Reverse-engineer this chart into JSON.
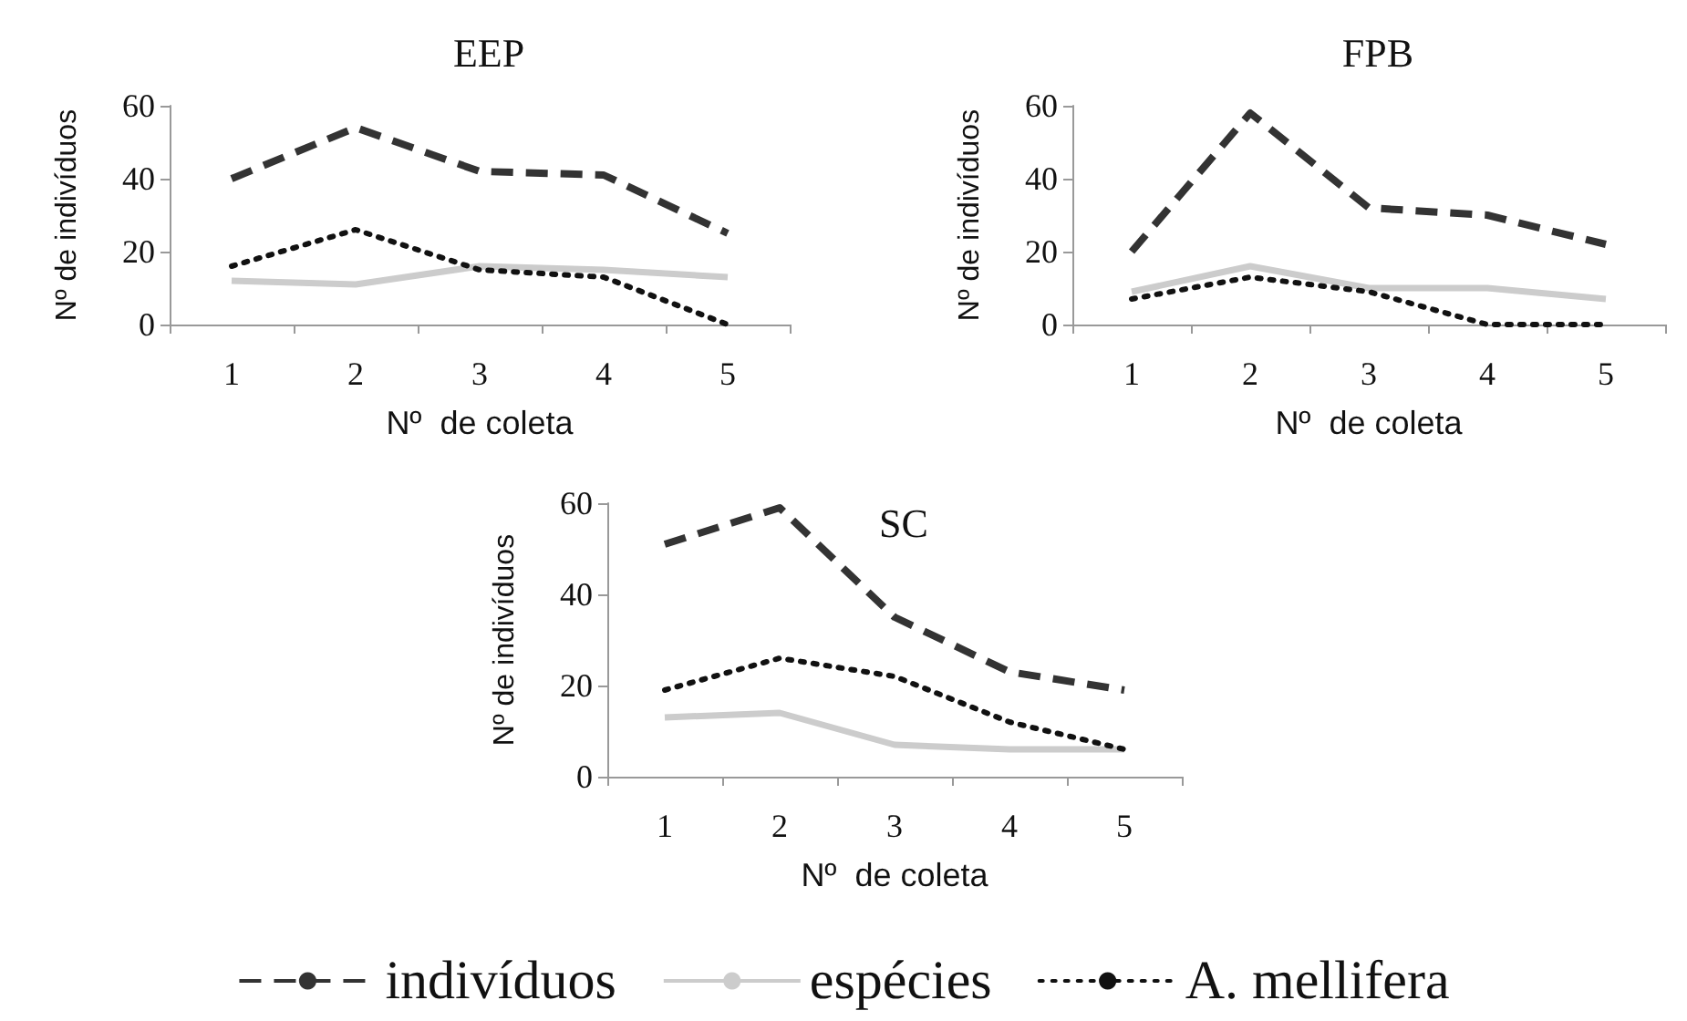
{
  "chart_data": [
    {
      "type": "line",
      "title": "EEP",
      "xlabel": "Nº  de coleta",
      "ylabel": "Nº de indivíduos",
      "categories": [
        "1",
        "2",
        "3",
        "4",
        "5"
      ],
      "ylim": [
        0,
        60
      ],
      "yticks": [
        0,
        20,
        40,
        60
      ],
      "grid": false,
      "legend": false,
      "marker": "none",
      "series": [
        {
          "color": "#333333",
          "line_style": "dashed",
          "values": [
            40,
            54,
            42,
            41,
            25
          ]
        },
        {
          "color": "#cccccc",
          "line_style": "solid",
          "values": [
            12,
            11,
            16,
            15,
            13
          ]
        },
        {
          "color": "#111111",
          "line_style": "dotted",
          "values": [
            16,
            26,
            15,
            13,
            0
          ]
        }
      ]
    },
    {
      "type": "line",
      "title": "FPB",
      "xlabel": "Nº  de coleta",
      "ylabel": "Nº de indivíduos",
      "categories": [
        "1",
        "2",
        "3",
        "4",
        "5"
      ],
      "ylim": [
        0,
        60
      ],
      "yticks": [
        0,
        20,
        40,
        60
      ],
      "grid": false,
      "legend": false,
      "marker": "none",
      "series": [
        {
          "color": "#333333",
          "line_style": "dashed",
          "values": [
            20,
            58,
            32,
            30,
            22
          ]
        },
        {
          "color": "#cccccc",
          "line_style": "solid",
          "values": [
            9,
            16,
            10,
            10,
            7
          ]
        },
        {
          "color": "#111111",
          "line_style": "dotted",
          "values": [
            7,
            13,
            9,
            0,
            0
          ]
        }
      ]
    },
    {
      "type": "line",
      "title": "SC",
      "xlabel": "Nº  de coleta",
      "ylabel": "Nº de indivíduos",
      "categories": [
        "1",
        "2",
        "3",
        "4",
        "5"
      ],
      "ylim": [
        0,
        60
      ],
      "yticks": [
        0,
        20,
        40,
        60
      ],
      "grid": false,
      "legend": "bottom",
      "marker": "none",
      "series": [
        {
          "name": "indivíduos",
          "color": "#333333",
          "line_style": "dashed",
          "values": [
            51,
            59,
            35,
            23,
            19
          ]
        },
        {
          "name": "espécies",
          "color": "#cccccc",
          "line_style": "solid",
          "values": [
            13,
            14,
            7,
            6,
            6
          ]
        },
        {
          "name": "A. mellifera",
          "color": "#111111",
          "line_style": "dotted",
          "values": [
            19,
            26,
            22,
            12,
            6
          ]
        }
      ]
    }
  ]
}
